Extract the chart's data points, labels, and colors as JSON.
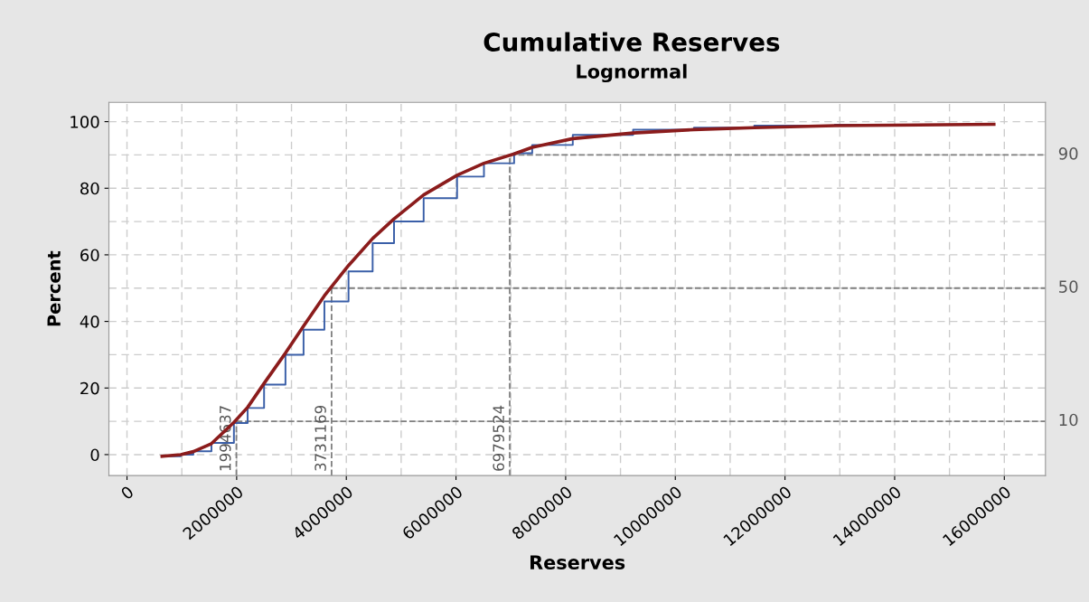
{
  "chart_data": {
    "type": "line",
    "title": "Cumulative Reserves",
    "subtitle": "Lognormal",
    "xlabel": "Reserves",
    "ylabel": "Percent",
    "xlim": [
      -330000,
      16750000
    ],
    "ylim": [
      -6.3,
      105.8
    ],
    "xticks": [
      0,
      2000000,
      4000000,
      6000000,
      8000000,
      10000000,
      12000000,
      14000000,
      16000000
    ],
    "yticks": [
      0,
      20,
      40,
      60,
      80,
      100
    ],
    "grid": true,
    "marker": "none",
    "line_style": "solid",
    "series": [
      {
        "type": "step",
        "color": "#3a5fa8",
        "x": [
          640000,
          980000,
          1210000,
          1540000,
          1950000,
          2200000,
          2500000,
          2890000,
          3220000,
          3600000,
          4040000,
          4480000,
          4870000,
          5410000,
          6020000,
          6510000,
          7060000,
          7390000,
          8130000,
          9230000,
          10340000,
          11440000,
          12910000,
          15810000
        ],
        "values": [
          -0.5,
          0,
          1.0,
          3.5,
          9.5,
          14,
          21,
          30,
          37.5,
          46,
          55,
          63.5,
          70,
          77,
          83.5,
          87.5,
          90.5,
          93,
          96,
          97.6,
          98.2,
          98.8,
          99.1,
          99.3
        ]
      },
      {
        "color": "#8b1c1c",
        "x": [
          640000,
          980000,
          1210000,
          1540000,
          1950000,
          2200000,
          2500000,
          2890000,
          3220000,
          3600000,
          4040000,
          4480000,
          4870000,
          5410000,
          6020000,
          6510000,
          7060000,
          7390000,
          8130000,
          9230000,
          10340000,
          11440000,
          12910000,
          15810000
        ],
        "values": [
          -0.5,
          0,
          0.9,
          3.3,
          9.7,
          14.2,
          21.4,
          30.5,
          38.6,
          47.7,
          56.8,
          64.9,
          70.8,
          78,
          83.9,
          87.5,
          90.3,
          92.3,
          94.9,
          96.6,
          97.6,
          98.2,
          98.8,
          99.2
        ]
      }
    ],
    "ref_lines": [
      {
        "axis": "x",
        "value": 1994637,
        "label": "1994637",
        "color": "#808080",
        "line_style": "dashed"
      },
      {
        "axis": "x",
        "value": 3731169,
        "label": "3731169",
        "color": "#808080",
        "line_style": "dashed"
      },
      {
        "axis": "x",
        "value": 6979524,
        "label": "6979524",
        "color": "#808080",
        "line_style": "dashed"
      },
      {
        "axis": "y",
        "value": 10,
        "label": "10",
        "color": "#808080",
        "line_style": "dashed"
      },
      {
        "axis": "y",
        "value": 50,
        "label": "50",
        "color": "#808080",
        "line_style": "dashed"
      },
      {
        "axis": "y",
        "value": 90,
        "label": "90",
        "color": "#808080",
        "line_style": "dashed"
      }
    ]
  }
}
